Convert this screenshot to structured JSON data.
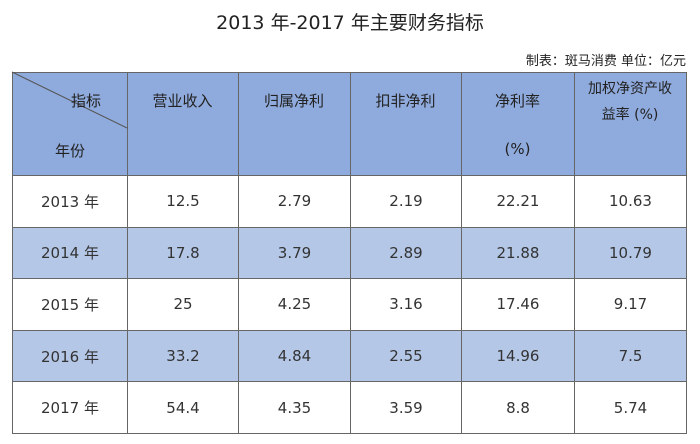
{
  "header": {
    "title": "2013 年-2017 年主要财务指标",
    "note": "制表：斑马消费 单位：亿元"
  },
  "table": {
    "corner": {
      "top": "指标",
      "bottom": "年份"
    },
    "columns": [
      [
        "营业收入"
      ],
      [
        "归属净利"
      ],
      [
        "扣非净利"
      ],
      [
        "净利率",
        "(%)"
      ],
      [
        "加权净资产收",
        "益率 (%)"
      ]
    ],
    "rows": [
      [
        "2013 年",
        "12.5",
        "2.79",
        "2.19",
        "22.21",
        "10.63"
      ],
      [
        "2014 年",
        "17.8",
        "3.79",
        "2.89",
        "21.88",
        "10.79"
      ],
      [
        "2015 年",
        "25",
        "4.25",
        "3.16",
        "17.46",
        "9.17"
      ],
      [
        "2016 年",
        "33.2",
        "4.84",
        "2.55",
        "14.96",
        "7.5"
      ],
      [
        "2017 年",
        "54.4",
        "4.35",
        "3.59",
        "8.8",
        "5.74"
      ]
    ]
  }
}
